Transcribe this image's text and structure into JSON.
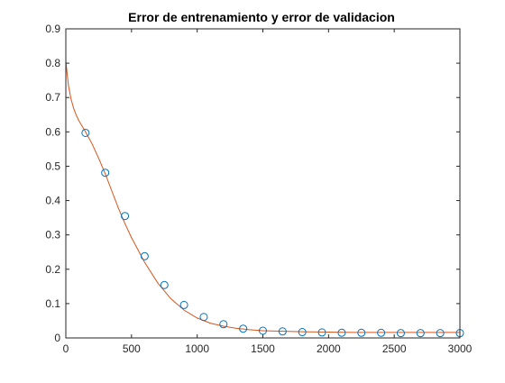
{
  "chart_data": {
    "type": "line",
    "title": "Error de entrenamiento y error de validacion",
    "xlabel": "",
    "ylabel": "",
    "xlim": [
      0,
      3000
    ],
    "ylim": [
      0,
      0.9
    ],
    "xticks": [
      0,
      500,
      1000,
      1500,
      2000,
      2500,
      3000
    ],
    "yticks": [
      0,
      0.1,
      0.2,
      0.3,
      0.4,
      0.5,
      0.6,
      0.7,
      0.8,
      0.9
    ],
    "grid": false,
    "legend": "none",
    "series": [
      {
        "kind": "line",
        "color": "#d95319",
        "x": [
          0,
          20,
          40,
          60,
          80,
          100,
          150,
          200,
          250,
          300,
          350,
          400,
          450,
          500,
          600,
          700,
          800,
          900,
          1000,
          1100,
          1200,
          1300,
          1400,
          1500,
          1600,
          1800,
          2000,
          2200,
          2400,
          2600,
          2800,
          3000
        ],
        "y": [
          0.805,
          0.735,
          0.695,
          0.668,
          0.648,
          0.632,
          0.6,
          0.565,
          0.523,
          0.478,
          0.428,
          0.378,
          0.333,
          0.292,
          0.22,
          0.16,
          0.114,
          0.081,
          0.058,
          0.043,
          0.034,
          0.028,
          0.024,
          0.021,
          0.02,
          0.018,
          0.017,
          0.016,
          0.016,
          0.016,
          0.016,
          0.016
        ]
      },
      {
        "kind": "scatter",
        "color": "#0072bd",
        "x": [
          150,
          300,
          450,
          600,
          750,
          900,
          1050,
          1200,
          1350,
          1500,
          1650,
          1800,
          1950,
          2100,
          2250,
          2400,
          2550,
          2700,
          2850,
          3000
        ],
        "y": [
          0.597,
          0.481,
          0.355,
          0.238,
          0.154,
          0.096,
          0.061,
          0.04,
          0.027,
          0.021,
          0.019,
          0.017,
          0.016,
          0.015,
          0.015,
          0.015,
          0.014,
          0.014,
          0.014,
          0.014
        ]
      }
    ]
  }
}
